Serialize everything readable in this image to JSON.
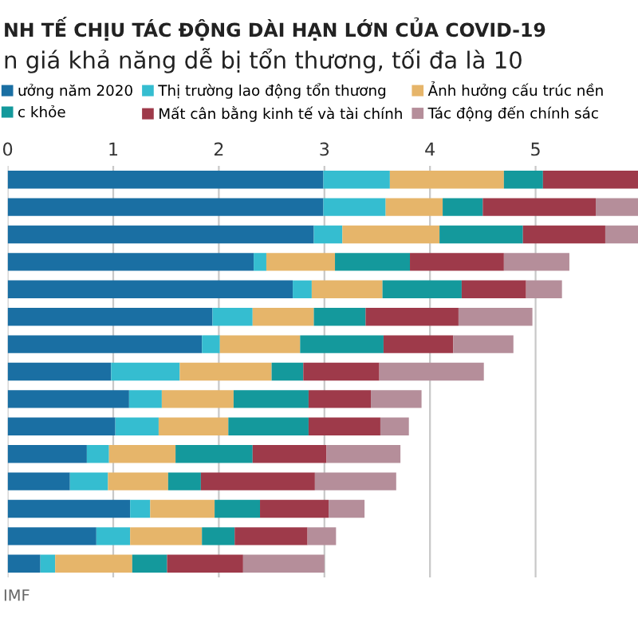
{
  "chart_data": {
    "type": "bar",
    "orientation": "horizontal",
    "stacked": true,
    "title": "NH TẾ CHỊU TÁC ĐỘNG DÀI HẠN LỚN CỦA COVID-19",
    "subtitle": "n giá khả năng dễ bị tổn thương, tối đa là 10",
    "annotations": [
      "IMF"
    ],
    "categories": [
      null,
      null,
      null,
      null,
      null,
      null,
      null,
      null,
      null,
      null,
      null,
      null,
      null,
      null,
      null
    ],
    "series": [
      {
        "name": "ưởng năm 2020",
        "color": "#1a6fa3",
        "values": [
          2.99,
          2.99,
          2.9,
          2.33,
          2.7,
          1.94,
          1.84,
          0.98,
          1.15,
          1.02,
          0.75,
          0.59,
          1.16,
          0.84,
          0.31
        ]
      },
      {
        "name": "Thị trường lao động tổn thương",
        "color": "#35bdd0",
        "values": [
          0.63,
          0.59,
          0.27,
          0.12,
          0.18,
          0.38,
          0.17,
          0.65,
          0.31,
          0.41,
          0.21,
          0.36,
          0.19,
          0.32,
          0.14
        ]
      },
      {
        "name": "Ảnh hưởng cấu trúc nền",
        "color": "#e6b56a",
        "values": [
          1.08,
          0.54,
          0.92,
          0.65,
          0.67,
          0.58,
          0.76,
          0.87,
          0.68,
          0.66,
          0.63,
          0.57,
          0.61,
          0.68,
          0.73
        ]
      },
      {
        "name": "c khỏe",
        "color": "#14999c",
        "values": [
          0.37,
          0.38,
          0.79,
          0.71,
          0.75,
          0.49,
          0.79,
          0.3,
          0.71,
          0.76,
          0.73,
          0.31,
          0.43,
          0.31,
          0.33
        ]
      },
      {
        "name": "Mất cân bằng kinh tế và tài chính",
        "color": "#9e3a4a",
        "values": [
          0.9,
          1.07,
          0.78,
          0.89,
          0.61,
          0.88,
          0.66,
          0.72,
          0.59,
          0.68,
          0.7,
          1.08,
          0.65,
          0.69,
          0.72
        ]
      },
      {
        "name": "Tác động đến chính sác",
        "color": "#b58e9a",
        "values": [
          null,
          0.4,
          0.31,
          0.62,
          0.34,
          0.7,
          0.57,
          0.99,
          0.48,
          0.27,
          0.7,
          0.77,
          0.34,
          0.27,
          0.77
        ]
      }
    ],
    "xlim": [
      0,
      5.97
    ],
    "xticks": [
      0,
      1,
      2,
      3,
      4,
      5
    ],
    "grid": "x",
    "legend": "top"
  }
}
